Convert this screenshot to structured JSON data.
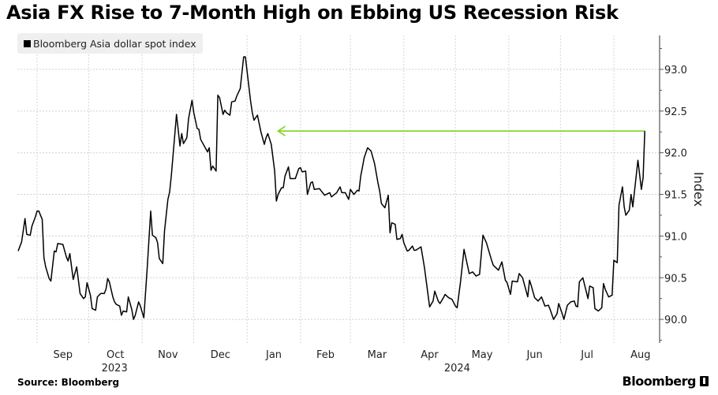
{
  "header": {
    "title": "Asia FX Rise to 7-Month High on Ebbing US Recession Risk"
  },
  "footer": {
    "source": "Source: Bloomberg",
    "brand": "Bloomberg"
  },
  "chart_data": {
    "type": "line",
    "title": "Asia FX Rise to 7-Month High on Ebbing US Recession Risk",
    "xlabel": "",
    "ylabel": "Index",
    "x_unit": "days since 2023-08-01",
    "ylim": [
      89.72,
      93.4
    ],
    "yticks": [
      90.0,
      90.5,
      91.0,
      91.5,
      92.0,
      92.5,
      93.0
    ],
    "ytick_labels": [
      "90.0",
      "90.5",
      "91.0",
      "91.5",
      "92.0",
      "92.5",
      "93.0"
    ],
    "grid": true,
    "legend": {
      "placement": "top-left",
      "entries": [
        "Bloomberg Asia dollar spot index"
      ]
    },
    "month_ticks": [
      {
        "label": "Sep",
        "start": 31,
        "end": 61
      },
      {
        "label": "Oct",
        "start": 61,
        "end": 92
      },
      {
        "label": "Nov",
        "start": 92,
        "end": 122
      },
      {
        "label": "Dec",
        "start": 122,
        "end": 153
      },
      {
        "label": "Jan",
        "start": 153,
        "end": 184
      },
      {
        "label": "Feb",
        "start": 184,
        "end": 213
      },
      {
        "label": "Mar",
        "start": 213,
        "end": 244
      },
      {
        "label": "Apr",
        "start": 244,
        "end": 274
      },
      {
        "label": "May",
        "start": 274,
        "end": 305
      },
      {
        "label": "Jun",
        "start": 305,
        "end": 335
      },
      {
        "label": "Jul",
        "start": 335,
        "end": 366
      },
      {
        "label": "Aug",
        "start": 366,
        "end": 397
      }
    ],
    "year_labels": [
      {
        "label": "2023",
        "at": 76
      },
      {
        "label": "2024",
        "at": 275
      }
    ],
    "annotation": {
      "type": "arrow",
      "value": 92.26,
      "from": 384,
      "to": 171,
      "color": "#7ed321"
    },
    "series": [
      {
        "name": "Bloomberg Asia dollar spot index",
        "color": "#000000",
        "x": [
          20,
          22,
          24,
          25,
          27,
          28,
          30,
          31,
          32,
          34,
          35,
          36,
          38,
          39,
          41,
          42,
          43,
          46,
          48,
          49,
          50,
          52,
          54,
          56,
          58,
          59,
          60,
          62,
          63,
          65,
          66,
          68,
          70,
          71,
          72,
          73,
          75,
          76,
          77,
          79,
          80,
          81,
          83,
          84,
          86,
          87,
          88,
          90,
          91,
          93,
          95,
          97,
          98,
          100,
          101,
          102,
          104,
          105,
          107,
          108,
          109,
          112,
          114,
          115,
          116,
          118,
          119,
          121,
          122,
          124,
          125,
          126,
          130,
          131,
          132,
          133,
          135,
          136,
          137,
          139,
          140,
          141,
          143,
          144,
          146,
          147,
          149,
          151,
          152,
          155,
          156,
          157,
          159,
          161,
          163,
          164,
          165,
          167,
          169,
          170,
          171,
          173,
          174,
          175,
          177,
          178,
          181,
          183,
          184,
          185,
          187,
          188,
          190,
          191,
          192,
          195,
          198,
          201,
          202,
          205,
          207,
          208,
          210,
          212,
          213,
          215,
          217,
          218,
          219,
          221,
          223,
          225,
          227,
          229,
          230,
          231,
          233,
          235,
          236,
          237,
          239,
          240,
          242,
          243,
          244,
          246,
          247,
          249,
          250,
          251,
          254,
          256,
          259,
          261,
          262,
          264,
          265,
          267,
          268,
          270,
          272,
          274,
          275,
          277,
          279,
          282,
          284,
          286,
          288,
          290,
          292,
          295,
          296,
          299,
          301,
          303,
          304,
          306,
          307,
          310,
          311,
          313,
          316,
          317,
          318,
          320,
          322,
          324,
          326,
          328,
          329,
          331,
          333,
          334,
          336,
          337,
          339,
          341,
          343,
          344,
          345,
          346,
          348,
          350,
          351,
          352,
          354,
          355,
          357,
          359,
          360,
          361,
          363,
          365,
          366,
          368,
          369,
          371,
          372,
          373,
          375,
          376,
          377,
          380,
          382,
          383,
          384
        ],
        "values": [
          90.82,
          90.93,
          91.21,
          91.02,
          91.01,
          91.12,
          91.23,
          91.3,
          91.3,
          91.2,
          90.74,
          90.63,
          90.49,
          90.46,
          90.82,
          90.81,
          90.91,
          90.9,
          90.75,
          90.7,
          90.79,
          90.48,
          90.63,
          90.31,
          90.25,
          90.27,
          90.44,
          90.29,
          90.13,
          90.11,
          90.27,
          90.31,
          90.31,
          90.36,
          90.49,
          90.45,
          90.27,
          90.21,
          90.18,
          90.16,
          90.05,
          90.1,
          90.09,
          90.27,
          90.12,
          90.0,
          90.05,
          90.21,
          90.16,
          90.02,
          90.62,
          91.3,
          91.01,
          90.98,
          90.92,
          90.73,
          90.67,
          91.06,
          91.44,
          91.53,
          91.73,
          92.46,
          92.08,
          92.23,
          92.11,
          92.18,
          92.41,
          92.63,
          92.48,
          92.29,
          92.28,
          92.16,
          92.01,
          92.06,
          91.79,
          91.84,
          91.78,
          92.69,
          92.66,
          92.46,
          92.51,
          92.48,
          92.45,
          92.61,
          92.62,
          92.68,
          92.77,
          93.15,
          93.15,
          92.62,
          92.48,
          92.39,
          92.45,
          92.25,
          92.1,
          92.18,
          92.23,
          92.1,
          91.78,
          91.42,
          91.5,
          91.58,
          91.58,
          91.72,
          91.83,
          91.69,
          91.69,
          91.81,
          91.82,
          91.77,
          91.78,
          91.5,
          91.64,
          91.65,
          91.56,
          91.57,
          91.49,
          91.52,
          91.47,
          91.52,
          91.59,
          91.52,
          91.52,
          91.44,
          91.56,
          91.5,
          91.55,
          91.54,
          91.72,
          91.94,
          92.06,
          92.02,
          91.87,
          91.64,
          91.54,
          91.39,
          91.34,
          91.49,
          91.04,
          91.16,
          91.14,
          90.96,
          90.97,
          91.02,
          90.92,
          90.82,
          90.83,
          90.88,
          90.83,
          90.83,
          90.87,
          90.62,
          90.15,
          90.22,
          90.34,
          90.22,
          90.19,
          90.26,
          90.3,
          90.26,
          90.24,
          90.16,
          90.14,
          90.46,
          90.84,
          90.55,
          90.57,
          90.52,
          90.54,
          91.01,
          90.92,
          90.71,
          90.65,
          90.59,
          90.69,
          90.47,
          90.44,
          90.3,
          90.46,
          90.45,
          90.55,
          90.5,
          90.27,
          90.47,
          90.41,
          90.26,
          90.22,
          90.27,
          90.16,
          90.17,
          90.12,
          90.0,
          90.07,
          90.19,
          90.07,
          90.0,
          90.17,
          90.21,
          90.22,
          90.16,
          90.15,
          90.45,
          90.5,
          90.33,
          90.25,
          90.4,
          90.38,
          90.13,
          90.1,
          90.14,
          90.43,
          90.36,
          90.27,
          90.29,
          90.71,
          90.68,
          91.37,
          91.59,
          91.35,
          91.25,
          91.31,
          91.5,
          91.35,
          91.91,
          91.56,
          91.7,
          92.26
        ]
      }
    ]
  }
}
